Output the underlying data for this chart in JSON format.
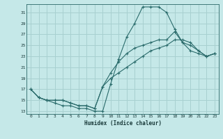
{
  "title": "",
  "xlabel": "Humidex (Indice chaleur)",
  "background_color": "#c5e8e8",
  "grid_color": "#a8d0d0",
  "line_color": "#2a6b6b",
  "xlim": [
    -0.5,
    23.5
  ],
  "ylim": [
    12.5,
    32.5
  ],
  "xticks": [
    0,
    1,
    2,
    3,
    4,
    5,
    6,
    7,
    8,
    9,
    10,
    11,
    12,
    13,
    14,
    15,
    16,
    17,
    18,
    19,
    20,
    21,
    22,
    23
  ],
  "yticks": [
    13,
    15,
    17,
    19,
    21,
    23,
    25,
    27,
    29,
    31
  ],
  "line1_x": [
    0,
    1,
    2,
    3,
    4,
    5,
    6,
    7,
    8,
    9,
    10,
    11,
    12,
    13,
    14,
    15,
    16,
    17,
    18,
    19,
    20,
    21,
    22,
    23
  ],
  "line1_y": [
    17,
    15.5,
    15,
    14.5,
    14,
    14,
    13.5,
    13.5,
    13,
    13,
    18,
    22.5,
    26.5,
    29,
    32,
    32,
    32,
    31,
    28,
    25.5,
    24,
    23.5,
    23,
    23.5
  ],
  "line2_x": [
    0,
    1,
    2,
    3,
    4,
    5,
    6,
    7,
    8,
    9,
    10,
    11,
    12,
    13,
    14,
    15,
    16,
    17,
    18,
    19,
    20,
    21,
    22,
    23
  ],
  "line2_y": [
    17,
    15.5,
    15,
    15,
    15,
    14.5,
    14,
    14,
    13.5,
    17.5,
    20,
    22,
    23.5,
    24.5,
    25,
    25.5,
    26,
    26,
    27.5,
    25.5,
    25,
    24,
    23,
    23.5
  ],
  "line3_x": [
    0,
    1,
    2,
    3,
    4,
    5,
    6,
    7,
    8,
    9,
    10,
    11,
    12,
    13,
    14,
    15,
    16,
    17,
    18,
    19,
    20,
    21,
    22,
    23
  ],
  "line3_y": [
    17,
    15.5,
    15,
    15,
    15,
    14.5,
    14,
    14,
    13.5,
    17.5,
    19,
    20,
    21,
    22,
    23,
    24,
    24.5,
    25,
    26,
    26,
    25.5,
    24,
    23,
    23.5
  ]
}
